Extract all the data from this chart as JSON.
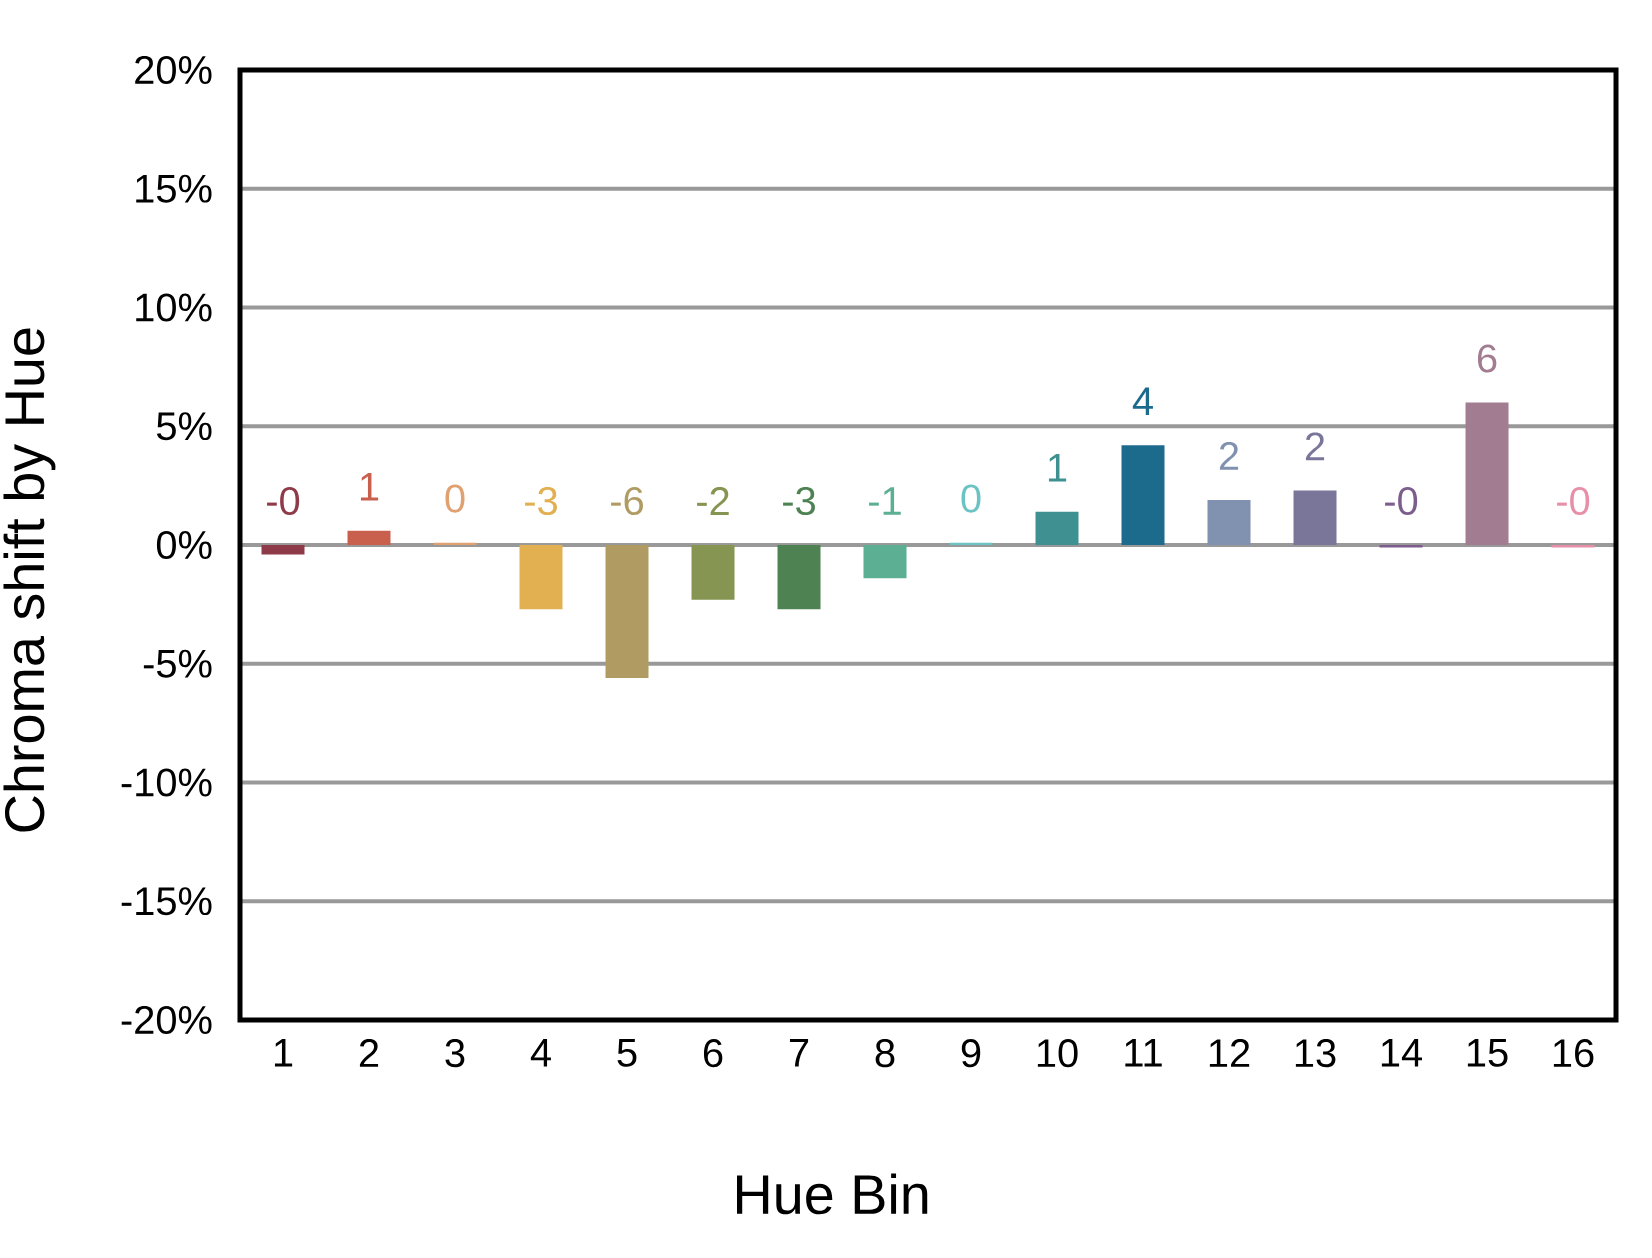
{
  "chart_data": {
    "type": "bar",
    "xlabel": "Hue Bin",
    "ylabel": "Chroma shift by Hue",
    "categories": [
      "1",
      "2",
      "3",
      "4",
      "5",
      "6",
      "7",
      "8",
      "9",
      "10",
      "11",
      "12",
      "13",
      "14",
      "15",
      "16"
    ],
    "values": [
      -0.4,
      0.6,
      0.1,
      -2.7,
      -5.6,
      -2.3,
      -2.7,
      -1.4,
      0.1,
      1.4,
      4.2,
      1.9,
      2.3,
      -0.1,
      6.0,
      -0.1
    ],
    "colors": [
      "#8f3a48",
      "#c9604e",
      "#e0a070",
      "#e2b050",
      "#b09c62",
      "#879552",
      "#4f8252",
      "#5caf92",
      "#6cc3c3",
      "#3f9191",
      "#1c6a8c",
      "#8191b0",
      "#7a7699",
      "#7d5d8c",
      "#a27d92",
      "#e88fa8"
    ],
    "value_labels": [
      "-0",
      "1",
      "0",
      "-3",
      "-6",
      "-2",
      "-3",
      "-1",
      "0",
      "1",
      "4",
      "2",
      "2",
      "-0",
      "6",
      "-0"
    ],
    "ylim": [
      -20,
      20
    ],
    "yticks": [
      {
        "value": -20,
        "label": "-20%"
      },
      {
        "value": -15,
        "label": "-15%"
      },
      {
        "value": -10,
        "label": "-10%"
      },
      {
        "value": -5,
        "label": "-5%"
      },
      {
        "value": 0,
        "label": "0%"
      },
      {
        "value": 5,
        "label": "5%"
      },
      {
        "value": 10,
        "label": "10%"
      },
      {
        "value": 15,
        "label": "15%"
      },
      {
        "value": 20,
        "label": "20%"
      }
    ],
    "grid": "y"
  }
}
